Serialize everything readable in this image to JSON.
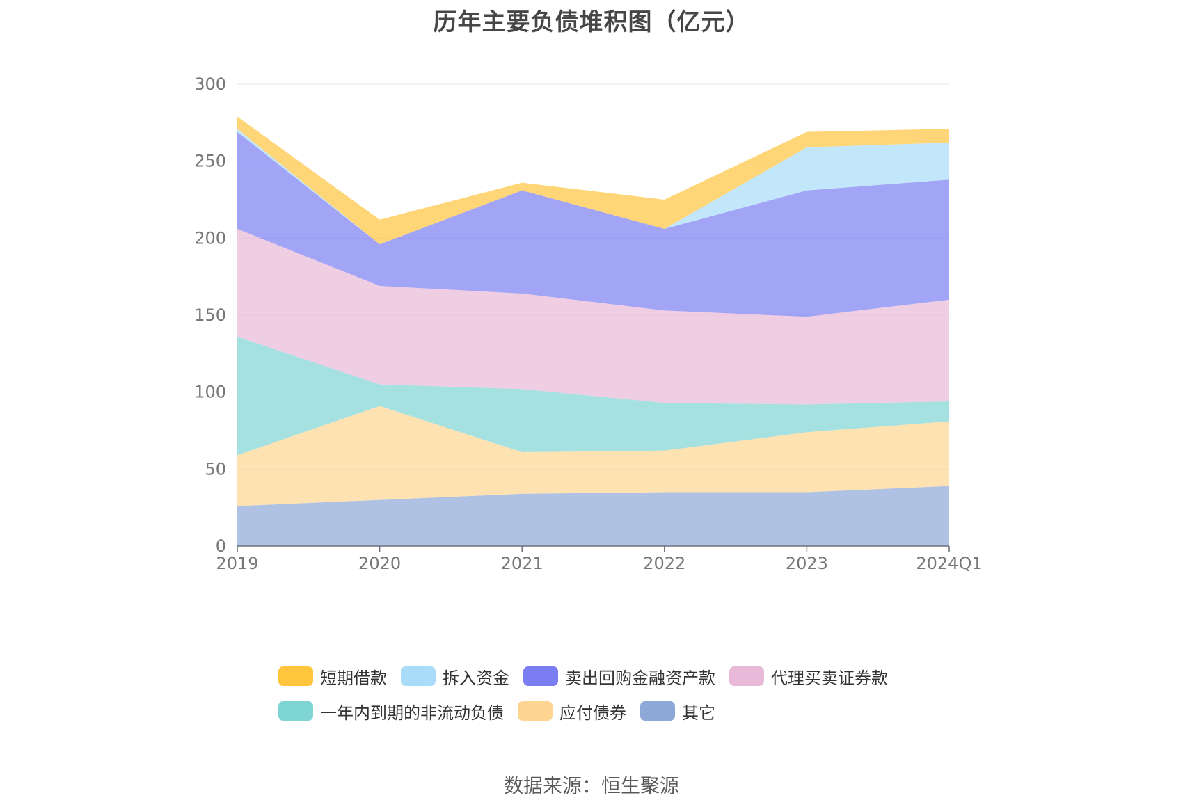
{
  "chart_data": {
    "type": "area",
    "stacked": true,
    "title": "历年主要负债堆积图（亿元）",
    "xlabel": "",
    "ylabel": "",
    "categories": [
      "2019",
      "2020",
      "2021",
      "2022",
      "2023",
      "2024Q1"
    ],
    "ylim": [
      0,
      300
    ],
    "yticks": [
      0,
      50,
      100,
      150,
      200,
      250,
      300
    ],
    "grid": true,
    "legend_position": "bottom",
    "series": [
      {
        "name": "其它",
        "color": "#8ea8d8",
        "values": [
          26,
          30,
          34,
          35,
          35,
          39
        ]
      },
      {
        "name": "应付债券",
        "color": "#ffd591",
        "values": [
          33,
          61,
          27,
          27,
          39,
          42
        ]
      },
      {
        "name": "一年内到期的非流动负债",
        "color": "#7fd4d4",
        "values": [
          77,
          14,
          41,
          31,
          18,
          13
        ]
      },
      {
        "name": "代理买卖证券款",
        "color": "#e8b9d8",
        "values": [
          70,
          64,
          62,
          60,
          57,
          66
        ]
      },
      {
        "name": "卖出回购金融资产款",
        "color": "#7b7df2",
        "values": [
          63,
          27,
          67,
          53,
          82,
          78
        ]
      },
      {
        "name": "拆入资金",
        "color": "#a8dcf8",
        "values": [
          2,
          0,
          0,
          0,
          28,
          24
        ]
      },
      {
        "name": "短期借款",
        "color": "#ffc53d",
        "values": [
          8,
          16,
          5,
          19,
          10,
          9
        ]
      }
    ]
  },
  "legend_order": [
    "短期借款",
    "拆入资金",
    "卖出回购金融资产款",
    "代理买卖证券款",
    "一年内到期的非流动负债",
    "应付债券",
    "其它"
  ],
  "source": "数据来源：恒生聚源"
}
